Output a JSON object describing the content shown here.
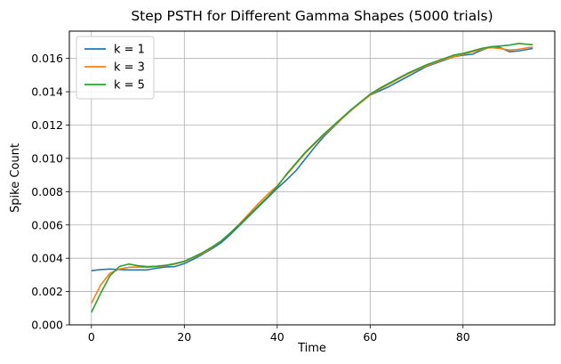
{
  "chart_data": {
    "type": "line",
    "title": "Step PSTH for Different Gamma Shapes (5000 trials)",
    "xlabel": "Time",
    "ylabel": "Spike Count",
    "xlim": [
      -4.75,
      99.75
    ],
    "ylim": [
      0,
      0.01764
    ],
    "xticks": [
      0,
      20,
      40,
      60,
      80
    ],
    "yticks": [
      0.0,
      0.002,
      0.004,
      0.006,
      0.008,
      0.01,
      0.012,
      0.014,
      0.016
    ],
    "ytick_labels": [
      "0.000",
      "0.002",
      "0.004",
      "0.006",
      "0.008",
      "0.010",
      "0.012",
      "0.014",
      "0.016"
    ],
    "grid": true,
    "legend_position": "upper-left",
    "x": [
      0,
      2,
      4,
      6,
      8,
      10,
      12,
      14,
      16,
      18,
      20,
      22,
      24,
      26,
      28,
      30,
      32,
      34,
      36,
      38,
      40,
      42,
      44,
      46,
      48,
      50,
      52,
      54,
      56,
      58,
      60,
      62,
      64,
      66,
      68,
      70,
      72,
      74,
      76,
      78,
      80,
      82,
      84,
      86,
      88,
      90,
      92,
      94,
      95
    ],
    "series": [
      {
        "name": "k = 1",
        "color": "#1f77b4",
        "values": [
          0.00325,
          0.00332,
          0.00335,
          0.00332,
          0.0033,
          0.0033,
          0.0033,
          0.0034,
          0.00348,
          0.0035,
          0.00368,
          0.00395,
          0.00425,
          0.00458,
          0.00495,
          0.00545,
          0.006,
          0.00655,
          0.0071,
          0.00765,
          0.0082,
          0.0087,
          0.00925,
          0.00995,
          0.01065,
          0.0113,
          0.01185,
          0.0124,
          0.0129,
          0.0134,
          0.0138,
          0.01405,
          0.0143,
          0.0146,
          0.0149,
          0.0152,
          0.0155,
          0.0157,
          0.0159,
          0.0161,
          0.0162,
          0.01625,
          0.0165,
          0.0167,
          0.01665,
          0.0164,
          0.01645,
          0.01655,
          0.0166
        ]
      },
      {
        "name": "k = 3",
        "color": "#ff7f0e",
        "values": [
          0.0013,
          0.0024,
          0.0031,
          0.00335,
          0.00345,
          0.00348,
          0.00345,
          0.0035,
          0.00355,
          0.00365,
          0.0038,
          0.00405,
          0.0043,
          0.00465,
          0.00505,
          0.00555,
          0.0061,
          0.0067,
          0.0073,
          0.00785,
          0.00835,
          0.009,
          0.00965,
          0.0103,
          0.01085,
          0.0114,
          0.0119,
          0.0124,
          0.0129,
          0.01335,
          0.0138,
          0.01415,
          0.01445,
          0.01475,
          0.01505,
          0.0153,
          0.01555,
          0.01575,
          0.01595,
          0.0161,
          0.01625,
          0.0164,
          0.01655,
          0.01665,
          0.0166,
          0.0165,
          0.01655,
          0.01665,
          0.01668
        ]
      },
      {
        "name": "k = 5",
        "color": "#2ca02c",
        "values": [
          0.00075,
          0.0019,
          0.00295,
          0.0035,
          0.00365,
          0.00355,
          0.0035,
          0.00352,
          0.00358,
          0.00368,
          0.00382,
          0.00408,
          0.00435,
          0.00468,
          0.00505,
          0.00555,
          0.00605,
          0.0066,
          0.00715,
          0.0077,
          0.0083,
          0.00905,
          0.0097,
          0.01035,
          0.0109,
          0.01145,
          0.01195,
          0.01245,
          0.01295,
          0.0134,
          0.01385,
          0.0142,
          0.0145,
          0.0148,
          0.0151,
          0.01535,
          0.0156,
          0.0158,
          0.016,
          0.0162,
          0.0163,
          0.01645,
          0.0166,
          0.0167,
          0.01675,
          0.0168,
          0.0169,
          0.01685,
          0.01683
        ]
      }
    ]
  }
}
